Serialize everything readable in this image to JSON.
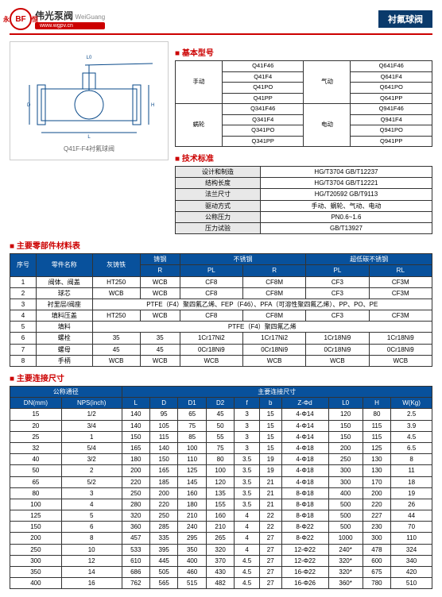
{
  "header": {
    "logo_badge": "BF",
    "logo_side1": "永",
    "logo_side2": "恒",
    "brand_cn": "伟光泵阀",
    "brand_en": "WeiGuang",
    "url": "www.wgpv.cn",
    "product_title": "衬氟球阀"
  },
  "diagram_caption": "Q41F-F4衬氟球阀",
  "sections": {
    "model": "基本型号",
    "std": "技术标准",
    "material": "主要零部件材料表",
    "dims": "主要连接尺寸"
  },
  "model_table": {
    "rows": [
      {
        "cat": "手动",
        "models": [
          "Q41F46",
          "Q41F4",
          "Q41PO",
          "Q41PP"
        ],
        "cat2": "气动",
        "models2": [
          "Q641F46",
          "Q641F4",
          "Q641PO",
          "Q641PP"
        ]
      },
      {
        "cat": "蜗轮",
        "models": [
          "Q341F46",
          "Q341F4",
          "Q341PO",
          "Q341PP"
        ],
        "cat2": "电动",
        "models2": [
          "Q941F46",
          "Q941F4",
          "Q941PO",
          "Q941PP"
        ]
      }
    ]
  },
  "std_table": [
    [
      "设计和制造",
      "HG/T3704 GB/T12237"
    ],
    [
      "结构长度",
      "HG/T3704 GB/T12221"
    ],
    [
      "法兰尺寸",
      "HG/T20592 GB/T9113"
    ],
    [
      "驱动方式",
      "手动、蜗轮、气动、电动"
    ],
    [
      "公称压力",
      "PN0.6~1.6"
    ],
    [
      "压力试验",
      "GB/T13927"
    ]
  ],
  "mat_table": {
    "head1": [
      "序号",
      "零件名称",
      "灰铸铁",
      "铸钢",
      "不锈钢",
      "不锈钢",
      "超低碳不锈钢",
      "超低碳不锈钢"
    ],
    "head2": [
      "",
      "",
      "",
      "R",
      "PL",
      "R",
      "PL",
      "RL"
    ],
    "rows": [
      [
        "1",
        "阀体、阀盖",
        "HT250",
        "WCB",
        "CF8",
        "CF8M",
        "CF3",
        "CF3M"
      ],
      [
        "2",
        "球芯",
        "WCB",
        "WCB",
        "CF8",
        "CF8M",
        "CF3",
        "CF3M"
      ],
      [
        "3",
        "衬里层/阀座",
        "PTFE（F4）聚四氟乙烯、FEP（F46）、PFA（可溶性聚四氟乙烯）、PP、PO、PE",
        "",
        "",
        "",
        "",
        ""
      ],
      [
        "4",
        "填料压盖",
        "HT250",
        "WCB",
        "CF8",
        "CF8M",
        "CF3",
        "CF3M"
      ],
      [
        "5",
        "填料",
        "PTFE（F4）聚四氟乙烯",
        "",
        "",
        "",
        "",
        ""
      ],
      [
        "6",
        "螺栓",
        "35",
        "35",
        "1Cr17Ni2",
        "1Cr17Ni2",
        "1Cr18Ni9",
        "1Cr18Ni9"
      ],
      [
        "7",
        "螺母",
        "45",
        "45",
        "0Cr18Ni9",
        "0Cr18Ni9",
        "0Cr18Ni9",
        "0Cr18Ni9"
      ],
      [
        "8",
        "手柄",
        "WCB",
        "WCB",
        "WCB",
        "WCB",
        "WCB",
        "WCB"
      ]
    ]
  },
  "dim_table": {
    "head1": [
      "公称通径",
      "公称通径",
      "主要连接尺寸",
      "",
      "",
      "",
      "",
      "",
      "",
      "",
      "",
      ""
    ],
    "head2": [
      "DN(mm)",
      "NPS(inch)",
      "L",
      "D",
      "D1",
      "D2",
      "f",
      "b",
      "Z-Φd",
      "L0",
      "H",
      "W(Kg)"
    ],
    "rows": [
      [
        "15",
        "1/2",
        "140",
        "95",
        "65",
        "45",
        "3",
        "15",
        "4-Φ14",
        "120",
        "80",
        "2.5"
      ],
      [
        "20",
        "3/4",
        "140",
        "105",
        "75",
        "50",
        "3",
        "15",
        "4-Φ14",
        "150",
        "115",
        "3.9"
      ],
      [
        "25",
        "1",
        "150",
        "115",
        "85",
        "55",
        "3",
        "15",
        "4-Φ14",
        "150",
        "115",
        "4.5"
      ],
      [
        "32",
        "5/4",
        "165",
        "140",
        "100",
        "75",
        "3",
        "15",
        "4-Φ18",
        "200",
        "125",
        "6.5"
      ],
      [
        "40",
        "3/2",
        "180",
        "150",
        "110",
        "80",
        "3.5",
        "19",
        "4-Φ18",
        "250",
        "130",
        "8"
      ],
      [
        "50",
        "2",
        "200",
        "165",
        "125",
        "100",
        "3.5",
        "19",
        "4-Φ18",
        "300",
        "130",
        "11"
      ],
      [
        "65",
        "5/2",
        "220",
        "185",
        "145",
        "120",
        "3.5",
        "21",
        "4-Φ18",
        "300",
        "170",
        "18"
      ],
      [
        "80",
        "3",
        "250",
        "200",
        "160",
        "135",
        "3.5",
        "21",
        "8-Φ18",
        "400",
        "200",
        "19"
      ],
      [
        "100",
        "4",
        "280",
        "220",
        "180",
        "155",
        "3.5",
        "21",
        "8-Φ18",
        "500",
        "220",
        "26"
      ],
      [
        "125",
        "5",
        "320",
        "250",
        "210",
        "160",
        "4",
        "22",
        "8-Φ18",
        "500",
        "227",
        "44"
      ],
      [
        "150",
        "6",
        "360",
        "285",
        "240",
        "210",
        "4",
        "22",
        "8-Φ22",
        "500",
        "230",
        "70"
      ],
      [
        "200",
        "8",
        "457",
        "335",
        "295",
        "265",
        "4",
        "27",
        "8-Φ22",
        "1000",
        "300",
        "110"
      ],
      [
        "250",
        "10",
        "533",
        "395",
        "350",
        "320",
        "4",
        "27",
        "12-Φ22",
        "240*",
        "478",
        "324"
      ],
      [
        "300",
        "12",
        "610",
        "445",
        "400",
        "370",
        "4.5",
        "27",
        "12-Φ22",
        "320*",
        "600",
        "340"
      ],
      [
        "350",
        "14",
        "686",
        "505",
        "460",
        "430",
        "4.5",
        "27",
        "16-Φ22",
        "320*",
        "675",
        "420"
      ],
      [
        "400",
        "16",
        "762",
        "565",
        "515",
        "482",
        "4.5",
        "27",
        "16-Φ26",
        "360*",
        "780",
        "510"
      ]
    ]
  },
  "colors": {
    "brand_red": "#c00020",
    "header_blue": "#08519c",
    "title_blue": "#0a3a6b"
  }
}
